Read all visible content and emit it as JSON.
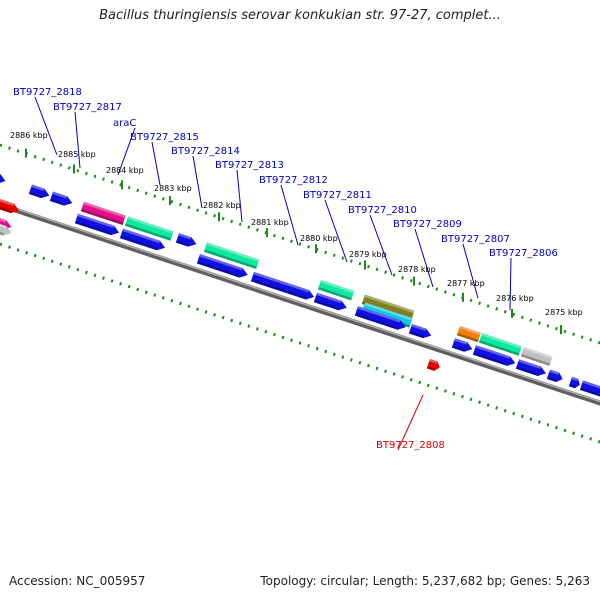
{
  "title": "Bacillus thuringiensis serovar konkukian str. 97-27, complet...",
  "footer": {
    "accession": "Accession: NC_005957",
    "topology": "Topology: circular; Length: 5,237,682 bp; Genes: 5,263"
  },
  "colors": {
    "backbone": "#808080",
    "ruler": "#1a8a1a",
    "cds_default": "#1010e0",
    "label_default": "#0000c0",
    "label_highlight": "#e00000",
    "highlight": "#e00000",
    "magenta": "#e0108a",
    "spring_green": "#10e8a0",
    "olive": "#808020",
    "cyan": "#10c8e0",
    "orange": "#f08010",
    "gray": "#c0c0c0"
  },
  "ruler_ticks": [
    "2886 kbp",
    "2885 kbp",
    "2884 kbp",
    "2883 kbp",
    "2882 kbp",
    "2881 kbp",
    "2880 kbp",
    "2879 kbp",
    "2878 kbp",
    "2877 kbp",
    "2876 kbp",
    "2875 kbp"
  ],
  "gene_labels": [
    {
      "text": "BT9727_2818",
      "color": "label_default"
    },
    {
      "text": "BT9727_2817",
      "color": "label_default"
    },
    {
      "text": "araC",
      "color": "label_default"
    },
    {
      "text": "BT9727_2815",
      "color": "label_default"
    },
    {
      "text": "BT9727_2814",
      "color": "label_default"
    },
    {
      "text": "BT9727_2813",
      "color": "label_default"
    },
    {
      "text": "BT9727_2812",
      "color": "label_default"
    },
    {
      "text": "BT9727_2811",
      "color": "label_default"
    },
    {
      "text": "BT9727_2810",
      "color": "label_default"
    },
    {
      "text": "BT9727_2809",
      "color": "label_default"
    },
    {
      "text": "BT9727_2807",
      "color": "label_default"
    },
    {
      "text": "BT9727_2806",
      "color": "label_default"
    },
    {
      "text": "BT9727_2808",
      "color": "label_highlight"
    }
  ]
}
